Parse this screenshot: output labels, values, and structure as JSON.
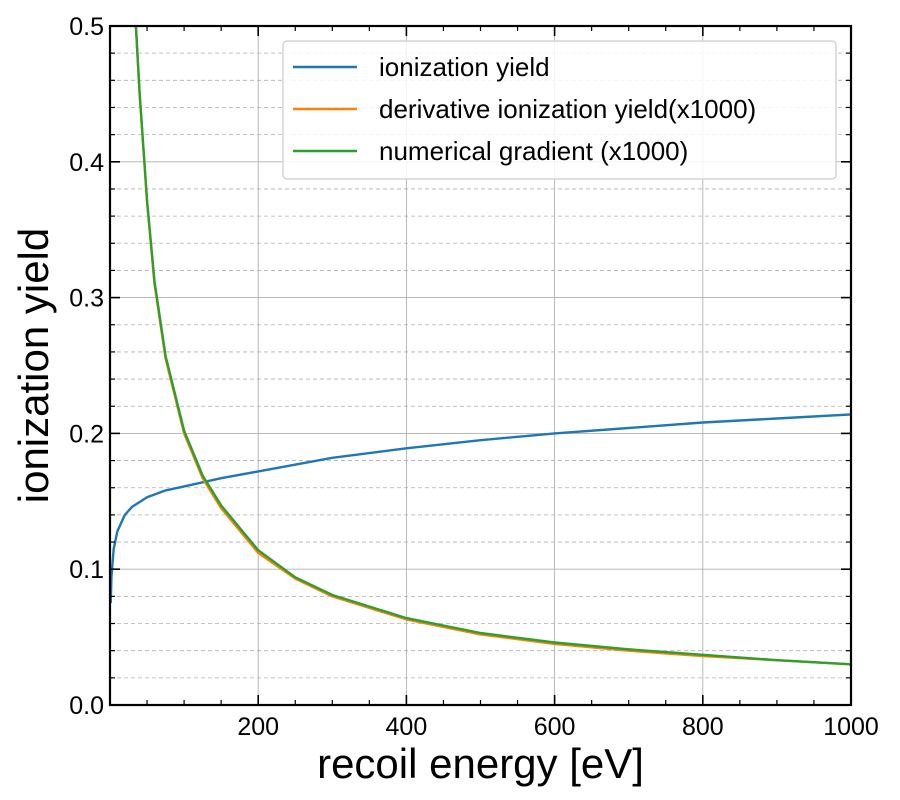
{
  "chart_data": {
    "type": "line",
    "xlabel": "recoil energy [eV]",
    "ylabel": "ionization yield",
    "xlim": [
      0,
      1000
    ],
    "ylim": [
      0,
      0.5
    ],
    "x_ticks": [
      200,
      400,
      600,
      800,
      1000
    ],
    "x_tick_labels": [
      "200",
      "400",
      "600",
      "800",
      "1000"
    ],
    "y_ticks": [
      0.0,
      0.1,
      0.2,
      0.3,
      0.4,
      0.5
    ],
    "y_tick_labels": [
      "0.0",
      "0.1",
      "0.2",
      "0.3",
      "0.4",
      "0.5"
    ],
    "grid": true,
    "legend_position": "top-right",
    "series": [
      {
        "name": "ionization yield",
        "color": "#1f77b4",
        "x": [
          1,
          2,
          5,
          10,
          20,
          30,
          50,
          75,
          100,
          150,
          200,
          300,
          400,
          500,
          600,
          700,
          800,
          900,
          1000
        ],
        "y": [
          0.075,
          0.095,
          0.115,
          0.128,
          0.14,
          0.146,
          0.153,
          0.158,
          0.161,
          0.167,
          0.172,
          0.182,
          0.189,
          0.195,
          0.2,
          0.204,
          0.208,
          0.211,
          0.214
        ]
      },
      {
        "name": "derivative ionization yield(x1000)",
        "color": "#ff7f0e",
        "x": [
          35,
          40,
          50,
          60,
          75,
          100,
          125,
          150,
          200,
          250,
          300,
          400,
          500,
          600,
          700,
          800,
          900,
          1000
        ],
        "y": [
          0.5,
          0.45,
          0.37,
          0.31,
          0.255,
          0.2,
          0.167,
          0.145,
          0.112,
          0.093,
          0.08,
          0.063,
          0.052,
          0.045,
          0.04,
          0.036,
          0.033,
          0.03
        ]
      },
      {
        "name": "numerical gradient (x1000)",
        "color": "#2ca02c",
        "x": [
          35,
          40,
          50,
          60,
          75,
          100,
          125,
          150,
          200,
          250,
          300,
          400,
          500,
          600,
          700,
          800,
          900,
          1000
        ],
        "y": [
          0.5,
          0.451,
          0.371,
          0.312,
          0.257,
          0.202,
          0.169,
          0.147,
          0.114,
          0.094,
          0.081,
          0.064,
          0.053,
          0.046,
          0.041,
          0.037,
          0.033,
          0.03
        ]
      }
    ]
  }
}
